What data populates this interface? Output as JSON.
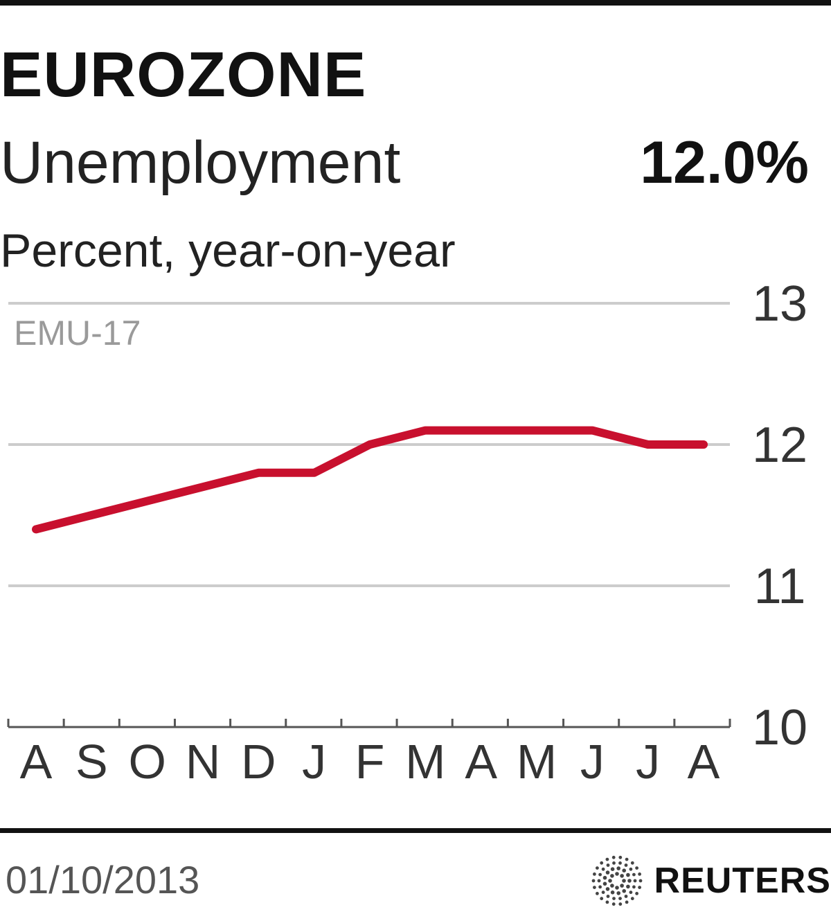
{
  "header": {
    "title": "EUROZONE",
    "subtitle": "Unemployment",
    "headline_value": "12.0%",
    "unit_label": "Percent, year-on-year"
  },
  "footer": {
    "date": "01/10/2013",
    "brand": "REUTERS"
  },
  "colors": {
    "series": "#c8102e",
    "gridline": "#cccccc",
    "axis": "#555555",
    "tick_label": "#333333",
    "series_label": "#9a9a9a"
  },
  "chart_data": {
    "type": "line",
    "title": "EUROZONE",
    "subtitle": "Unemployment",
    "ylabel": "Percent, year-on-year",
    "categories": [
      "A",
      "S",
      "O",
      "N",
      "D",
      "J",
      "F",
      "M",
      "A",
      "M",
      "J",
      "J",
      "A"
    ],
    "series": [
      {
        "name": "EMU-17",
        "values": [
          11.4,
          11.5,
          11.6,
          11.7,
          11.8,
          11.8,
          12.0,
          12.1,
          12.1,
          12.1,
          12.1,
          12.0,
          12.0
        ]
      }
    ],
    "ylim": [
      10,
      13
    ],
    "yticks": [
      10,
      11,
      12,
      13
    ],
    "ytick_side": "right",
    "grid": true,
    "legend": "none"
  }
}
